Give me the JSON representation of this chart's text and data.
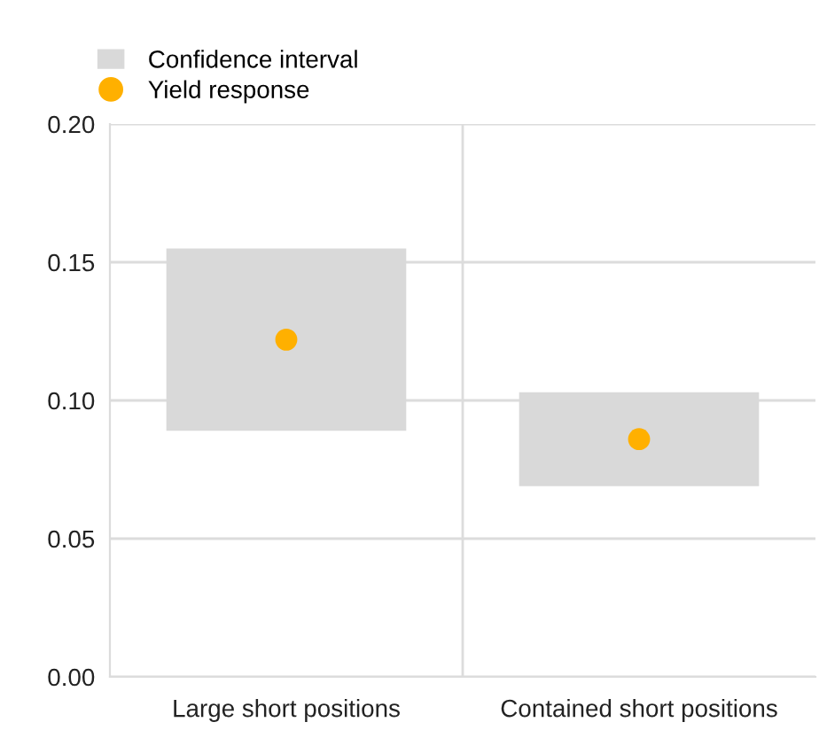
{
  "chart_data": {
    "type": "bar",
    "categories": [
      "Large short positions",
      "Contained short positions"
    ],
    "series": [
      {
        "name": "Confidence interval",
        "color": "#d9d9d9",
        "base": [
          0.089,
          0.069
        ],
        "values": [
          0.066,
          0.034
        ]
      },
      {
        "name": "Yield response",
        "type": "scatter",
        "color": "#ffb000",
        "x": [
          "Large short positions",
          "Contained short positions"
        ],
        "values": [
          0.122,
          0.086
        ]
      }
    ],
    "ylim": [
      0,
      0.2
    ],
    "yticks": [
      {
        "value": 0,
        "label": "0.00"
      },
      {
        "value": 0.05,
        "label": "0.05"
      },
      {
        "value": 0.1,
        "label": "0.10"
      },
      {
        "value": 0.15,
        "label": "0.15"
      },
      {
        "value": 0.2,
        "label": "0.20"
      }
    ],
    "grid": true,
    "legend": "top left",
    "marker": "circle"
  }
}
